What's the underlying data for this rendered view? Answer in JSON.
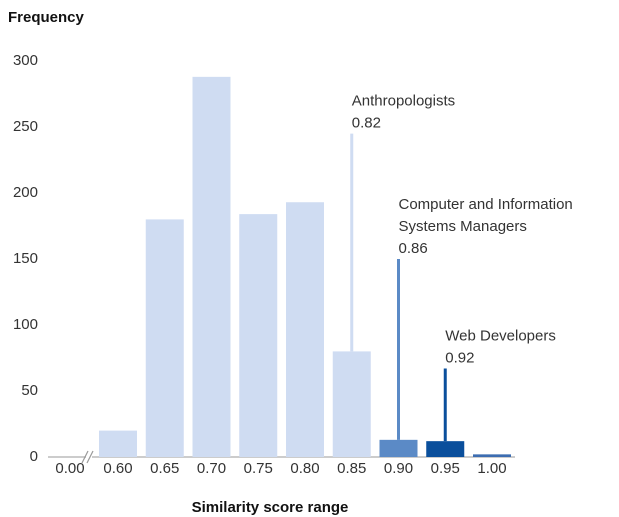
{
  "chart_data": {
    "type": "bar",
    "title": "Frequency",
    "x_label": "Similarity score range",
    "categories": [
      "0.00",
      "0.60",
      "0.65",
      "0.70",
      "0.75",
      "0.80",
      "0.85",
      "0.90",
      "0.95",
      "1.00"
    ],
    "values": [
      null,
      20,
      180,
      288,
      184,
      193,
      80,
      13,
      12,
      2
    ],
    "colors": [
      "#cfdcf2",
      "#cfdcf2",
      "#cfdcf2",
      "#cfdcf2",
      "#cfdcf2",
      "#cfdcf2",
      "#cfdcf2",
      "#5b8ac6",
      "#0a4f9c",
      "#3d6db1"
    ],
    "ylim": [
      0,
      300
    ],
    "yticks": [
      0,
      50,
      100,
      150,
      200,
      250,
      300
    ],
    "grid": false,
    "annotations": [
      {
        "label": [
          "Anthropologists"
        ],
        "value_label": "0.82",
        "category": "0.85",
        "y": 245,
        "color": "#cfdcf2"
      },
      {
        "label": [
          "Computer and Information",
          "Systems Managers"
        ],
        "value_label": "0.86",
        "category": "0.90",
        "y": 150,
        "color": "#5b8ac6"
      },
      {
        "label": [
          "Web Developers"
        ],
        "value_label": "0.92",
        "category": "0.95",
        "y": 67,
        "color": "#0a4f9c"
      }
    ]
  }
}
